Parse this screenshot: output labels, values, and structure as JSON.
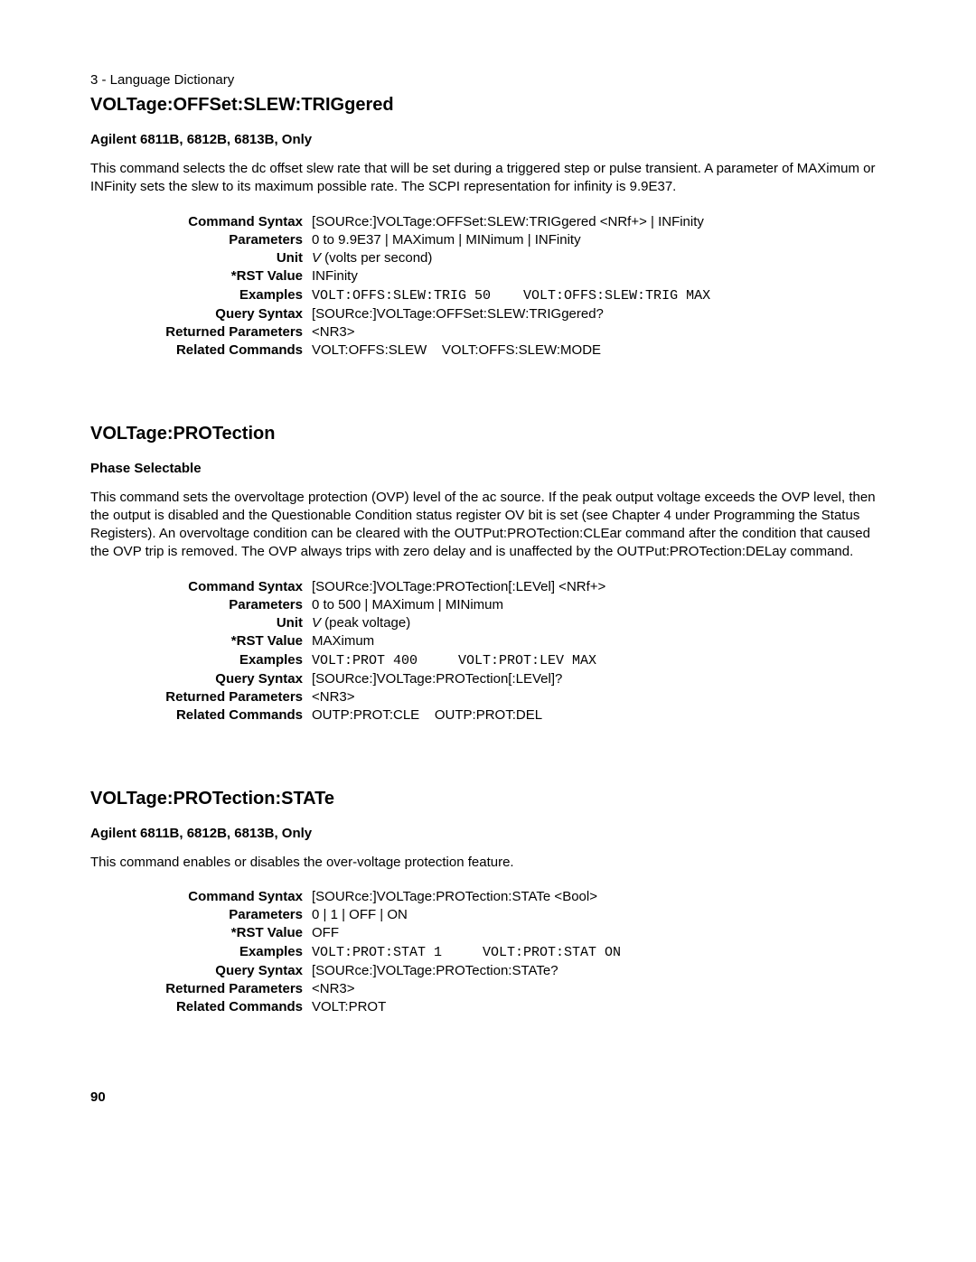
{
  "header": "3 - Language Dictionary",
  "page_number": "90",
  "sections": [
    {
      "title": "VOLTage:OFFSet:SLEW:TRIGgered",
      "subtitle": "Agilent 6811B, 6812B, 6813B, Only",
      "description": "This command selects the dc offset slew rate that will be set during a triggered step or pulse transient. A parameter of MAXimum or INFinity sets the slew to its maximum possible rate. The SCPI representation for infinity is 9.9E37.",
      "rows": [
        {
          "label": "Command Syntax",
          "value": "[SOURce:]VOLTage:OFFSet:SLEW:TRIGgered <NRf+> | INFinity"
        },
        {
          "label": "Parameters",
          "value": "0 to 9.9E37 | MAXimum | MINimum | INFinity"
        },
        {
          "label": "Unit",
          "value_italic_prefix": "V",
          "value_rest": " (volts per second)"
        },
        {
          "label": "*RST Value",
          "value": "INFinity"
        },
        {
          "label": "Examples",
          "value_mono": "VOLT:OFFS:SLEW:TRIG 50    VOLT:OFFS:SLEW:TRIG MAX"
        },
        {
          "label": "Query Syntax",
          "value": "[SOURce:]VOLTage:OFFSet:SLEW:TRIGgered?"
        },
        {
          "label": "Returned Parameters",
          "value": "<NR3>"
        },
        {
          "label": "Related Commands",
          "value": "VOLT:OFFS:SLEW    VOLT:OFFS:SLEW:MODE"
        }
      ]
    },
    {
      "title": "VOLTage:PROTection",
      "subtitle": "Phase Selectable",
      "description": "This command sets the overvoltage protection (OVP) level of the ac source. If the peak output voltage exceeds the OVP level, then the  output is disabled and the Questionable Condition status register OV bit is set (see Chapter 4 under Programming the Status Registers). An overvoltage condition can be cleared with the OUTPut:PROTection:CLEar command after the condition that caused the OVP trip is removed. The OVP always trips with zero delay and is unaffected by the OUTPut:PROTection:DELay command.",
      "rows": [
        {
          "label": "Command Syntax",
          "value": "[SOURce:]VOLTage:PROTection[:LEVel] <NRf+>"
        },
        {
          "label": "Parameters",
          "value": "0 to 500 | MAXimum | MINimum"
        },
        {
          "label": "Unit",
          "value_italic_prefix": "V",
          "value_rest": " (peak voltage)"
        },
        {
          "label": "*RST Value",
          "value": "MAXimum"
        },
        {
          "label": "Examples",
          "value_mono": "VOLT:PROT 400     VOLT:PROT:LEV MAX"
        },
        {
          "label": "Query Syntax",
          "value": "[SOURce:]VOLTage:PROTection[:LEVel]?"
        },
        {
          "label": "Returned Parameters",
          "value": "<NR3>"
        },
        {
          "label": "Related Commands",
          "value": "OUTP:PROT:CLE    OUTP:PROT:DEL"
        }
      ]
    },
    {
      "title": "VOLTage:PROTection:STATe",
      "subtitle": "Agilent 6811B, 6812B, 6813B, Only",
      "description": "This command enables or disables the over-voltage protection feature.",
      "rows": [
        {
          "label": "Command Syntax",
          "value": "[SOURce:]VOLTage:PROTection:STATe <Bool>"
        },
        {
          "label": "Parameters",
          "value": "0 | 1 | OFF | ON"
        },
        {
          "label": "*RST Value",
          "value": "OFF"
        },
        {
          "label": "Examples",
          "value_mono": "VOLT:PROT:STAT 1     VOLT:PROT:STAT ON"
        },
        {
          "label": "Query Syntax",
          "value": "[SOURce:]VOLTage:PROTection:STATe?"
        },
        {
          "label": "Returned Parameters",
          "value": "<NR3>"
        },
        {
          "label": "Related Commands",
          "value": "VOLT:PROT"
        }
      ]
    }
  ]
}
